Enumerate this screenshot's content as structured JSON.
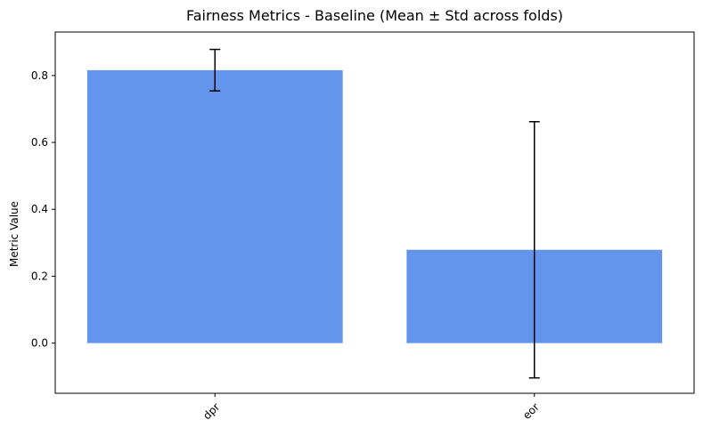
{
  "chart_data": {
    "type": "bar",
    "title": "Fairness Metrics - Baseline (Mean ± Std across folds)",
    "xlabel": "",
    "ylabel": "Metric Value",
    "categories": [
      "dpr",
      "eor"
    ],
    "values": [
      0.816,
      0.279
    ],
    "errors": [
      0.062,
      0.383
    ],
    "ylim": [
      -0.15,
      0.93
    ],
    "yticks": [
      0.0,
      0.2,
      0.4,
      0.6,
      0.8
    ],
    "ytick_labels": [
      "0.0",
      "0.2",
      "0.4",
      "0.6",
      "0.8"
    ],
    "xtick_rotation": 45,
    "bar_color": "#6495ED",
    "error_color": "#000000",
    "grid": false,
    "legend": "none"
  }
}
